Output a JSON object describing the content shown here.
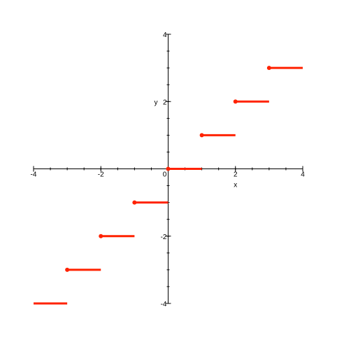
{
  "chart_data": {
    "type": "line",
    "title": "",
    "xlabel": "x",
    "ylabel": "y",
    "xlim": [
      -4,
      4
    ],
    "ylim": [
      -4,
      4
    ],
    "grid": false,
    "series_color": "#ff2200",
    "x_ticks": [
      {
        "value": -4,
        "label": "-4"
      },
      {
        "value": -2,
        "label": "-2"
      },
      {
        "value": 0,
        "label": "0"
      },
      {
        "value": 2,
        "label": "2"
      },
      {
        "value": 4,
        "label": "4"
      }
    ],
    "y_ticks": [
      {
        "value": -4,
        "label": "-4"
      },
      {
        "value": -2,
        "label": "-2"
      },
      {
        "value": 2,
        "label": "2"
      },
      {
        "value": 4,
        "label": "4"
      }
    ],
    "segments": [
      {
        "x_start": -4,
        "x_end": -3,
        "y": -4,
        "closed_start": false
      },
      {
        "x_start": -3,
        "x_end": -2,
        "y": -3,
        "closed_start": true
      },
      {
        "x_start": -2,
        "x_end": -1,
        "y": -2,
        "closed_start": true
      },
      {
        "x_start": -1,
        "x_end": 0,
        "y": -1,
        "closed_start": true
      },
      {
        "x_start": 0,
        "x_end": 1,
        "y": 0,
        "closed_start": true
      },
      {
        "x_start": 1,
        "x_end": 2,
        "y": 1,
        "closed_start": true
      },
      {
        "x_start": 2,
        "x_end": 3,
        "y": 2,
        "closed_start": true
      },
      {
        "x_start": 3,
        "x_end": 4,
        "y": 3,
        "closed_start": true
      }
    ]
  }
}
